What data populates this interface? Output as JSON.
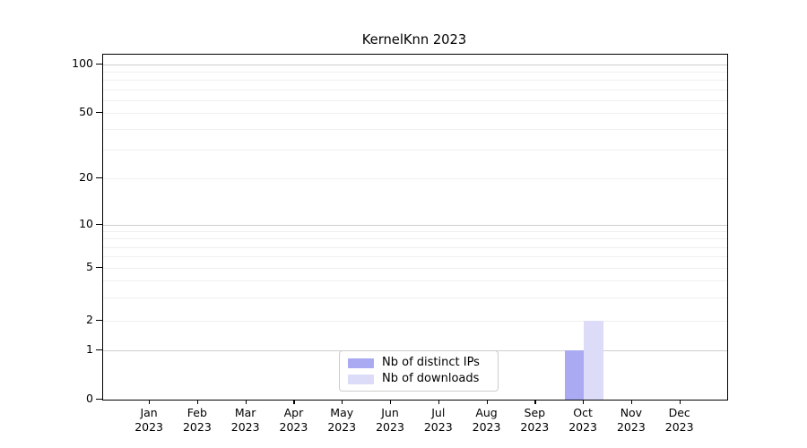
{
  "chart_data": {
    "type": "bar",
    "title": "KernelKnn 2023",
    "x_ticks": [
      {
        "month": "Jan",
        "year": "2023"
      },
      {
        "month": "Feb",
        "year": "2023"
      },
      {
        "month": "Mar",
        "year": "2023"
      },
      {
        "month": "Apr",
        "year": "2023"
      },
      {
        "month": "May",
        "year": "2023"
      },
      {
        "month": "Jun",
        "year": "2023"
      },
      {
        "month": "Jul",
        "year": "2023"
      },
      {
        "month": "Aug",
        "year": "2023"
      },
      {
        "month": "Sep",
        "year": "2023"
      },
      {
        "month": "Oct",
        "year": "2023"
      },
      {
        "month": "Nov",
        "year": "2023"
      },
      {
        "month": "Dec",
        "year": "2023"
      }
    ],
    "series": [
      {
        "name": "Nb of distinct IPs",
        "color": "#aaaaf2",
        "values": [
          0,
          0,
          0,
          0,
          0,
          0,
          0,
          0,
          0,
          1,
          0,
          0
        ]
      },
      {
        "name": "Nb of downloads",
        "color": "#dcdcf8",
        "values": [
          0,
          0,
          0,
          0,
          0,
          0,
          0,
          0,
          0,
          2,
          0,
          0
        ]
      }
    ],
    "y_ticks": [
      0,
      1,
      2,
      5,
      10,
      20,
      50,
      100
    ],
    "y_major_gridlines": [
      1,
      10,
      100
    ],
    "y_minor_gridlines": [
      3,
      4,
      6,
      7,
      8,
      9,
      30,
      40,
      60,
      70,
      80,
      90
    ],
    "ylim": [
      0,
      113
    ],
    "yscale": "symlog",
    "grid": true,
    "legend_position": "lower center",
    "colors": {
      "grid_major": "#cfcfcf",
      "grid_minor": "#efefef",
      "axis": "#000000"
    }
  }
}
